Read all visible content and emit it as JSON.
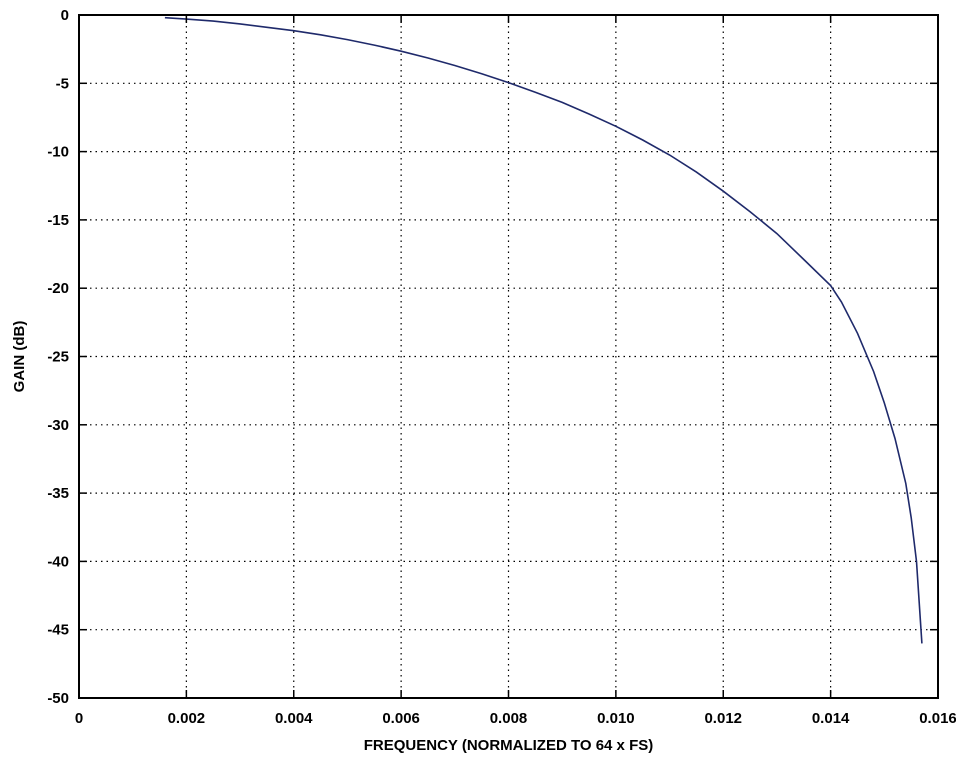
{
  "chart_data": {
    "type": "line",
    "title": "",
    "xlabel": "FREQUENCY (NORMALIZED TO 64 x FS)",
    "ylabel": "GAIN (dB)",
    "xlim": [
      0,
      0.016
    ],
    "ylim": [
      -50,
      0
    ],
    "grid": true,
    "x_ticks": [
      {
        "value": 0,
        "label": "0"
      },
      {
        "value": 0.002,
        "label": "0.002"
      },
      {
        "value": 0.004,
        "label": "0.004"
      },
      {
        "value": 0.006,
        "label": "0.006"
      },
      {
        "value": 0.008,
        "label": "0.008"
      },
      {
        "value": 0.01,
        "label": "0.010"
      },
      {
        "value": 0.012,
        "label": "0.012"
      },
      {
        "value": 0.014,
        "label": "0.014"
      },
      {
        "value": 0.016,
        "label": "0.016"
      }
    ],
    "y_ticks": [
      {
        "value": 0,
        "label": "0"
      },
      {
        "value": -5,
        "label": "-5"
      },
      {
        "value": -10,
        "label": "-10"
      },
      {
        "value": -15,
        "label": "-15"
      },
      {
        "value": -20,
        "label": "-20"
      },
      {
        "value": -25,
        "label": "-25"
      },
      {
        "value": -30,
        "label": "-30"
      },
      {
        "value": -35,
        "label": "-35"
      },
      {
        "value": -40,
        "label": "-40"
      },
      {
        "value": -45,
        "label": "-45"
      },
      {
        "value": -50,
        "label": "-50"
      }
    ],
    "series": [
      {
        "color": "#1f2a6b",
        "x": [
          0.0016,
          0.002,
          0.0025,
          0.003,
          0.0035,
          0.004,
          0.0045,
          0.005,
          0.0055,
          0.006,
          0.0065,
          0.007,
          0.0075,
          0.008,
          0.0085,
          0.009,
          0.0095,
          0.01,
          0.0105,
          0.011,
          0.0115,
          0.012,
          0.0125,
          0.013,
          0.0135,
          0.014,
          0.0142,
          0.0145,
          0.0148,
          0.015,
          0.0152,
          0.0154,
          0.0155,
          0.0156,
          0.01565,
          0.0157
        ],
        "y": [
          -0.2,
          -0.3,
          -0.45,
          -0.65,
          -0.9,
          -1.15,
          -1.45,
          -1.8,
          -2.2,
          -2.65,
          -3.15,
          -3.7,
          -4.3,
          -4.95,
          -5.65,
          -6.4,
          -7.25,
          -8.15,
          -9.15,
          -10.25,
          -11.5,
          -12.9,
          -14.4,
          -16.0,
          -17.9,
          -19.8,
          -21.0,
          -23.3,
          -26.1,
          -28.4,
          -31.0,
          -34.3,
          -36.8,
          -40.0,
          -43.0,
          -46.0
        ]
      }
    ]
  }
}
